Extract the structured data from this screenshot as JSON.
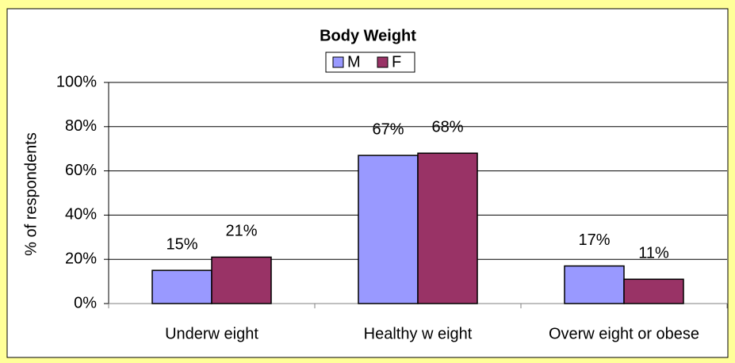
{
  "chart_data": {
    "type": "bar",
    "title": "Body Weight",
    "categories": [
      "Underw eight",
      "Healthy w eight",
      "Overw eight or obese"
    ],
    "series": [
      {
        "name": "M",
        "color": "#9999ff",
        "values": [
          15,
          67,
          17
        ],
        "value_labels": [
          "15%",
          "67%",
          "17%"
        ]
      },
      {
        "name": "F",
        "color": "#993366",
        "values": [
          21,
          68,
          11
        ],
        "value_labels": [
          "21%",
          "68%",
          "11%"
        ]
      }
    ],
    "ylabel": "% of respondents",
    "ylim": [
      0,
      100
    ],
    "yticks": [
      {
        "value": 0,
        "label": "0%"
      },
      {
        "value": 20,
        "label": "20%"
      },
      {
        "value": 40,
        "label": "40%"
      },
      {
        "value": 60,
        "label": "60%"
      },
      {
        "value": 80,
        "label": "80%"
      },
      {
        "value": 100,
        "label": "100%"
      }
    ],
    "grid": true,
    "legend": "top"
  }
}
